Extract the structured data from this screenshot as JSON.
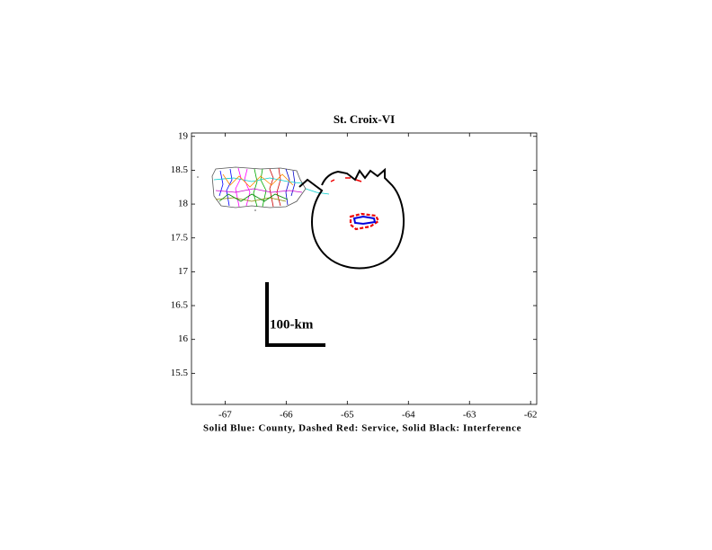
{
  "chart_data": {
    "type": "map",
    "title": "St. Croix-VI",
    "xlabel": "Solid Blue: County, Dashed Red: Service, Solid Black: Interference",
    "scale_label": "100-km",
    "xlim": [
      -67.55,
      -61.9
    ],
    "ylim": [
      15.04,
      19.05
    ],
    "xticks": [
      -67,
      -66,
      -65,
      -64,
      -63,
      -62
    ],
    "yticks": [
      19,
      18.5,
      18,
      17.5,
      17,
      16.5,
      16,
      15.5
    ]
  }
}
